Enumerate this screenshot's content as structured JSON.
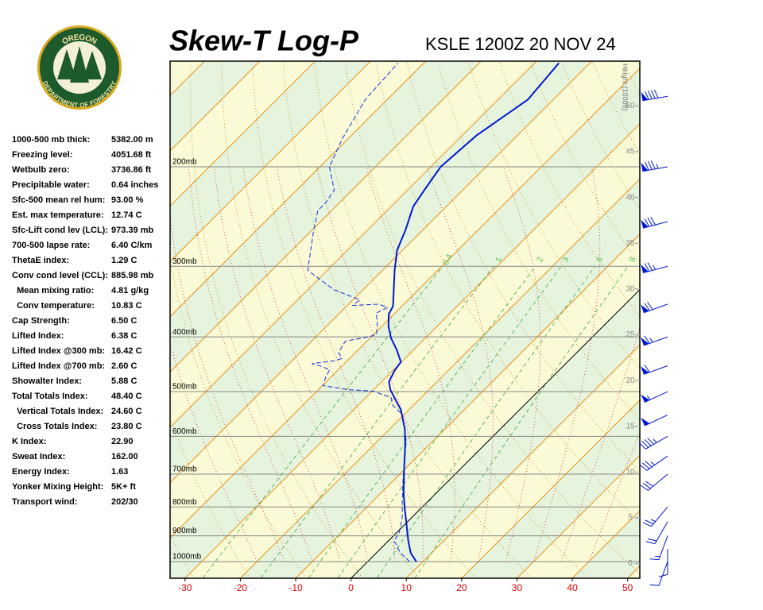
{
  "logo": {
    "top": "OREGON",
    "bottom": "DEPARTMENT OF FORESTRY"
  },
  "indices": {
    "rows": [
      [
        "1000-500 mb thick:",
        "5382.00 m"
      ],
      [
        "Freezing level:",
        "4051.68 ft"
      ],
      [
        "Wetbulb zero:",
        "3736.86 ft"
      ],
      [
        "Precipitable water:",
        "0.64 inches"
      ],
      [
        "Sfc-500 mean rel hum:",
        "93.00 %"
      ],
      [
        "Est. max temperature:",
        "12.74 C"
      ],
      [
        "Sfc-Lift cond lev (LCL):",
        "973.39 mb"
      ],
      [
        "700-500 lapse rate:",
        "6.40 C/km"
      ],
      [
        "ThetaE index:",
        "1.29 C"
      ],
      [
        "Conv cond level (CCL):",
        "885.98 mb"
      ],
      [
        "  Mean mixing ratio:",
        "4.81 g/kg"
      ],
      [
        "  Conv temperature:",
        "10.83 C"
      ],
      [
        "Cap Strength:",
        "6.50 C"
      ],
      [
        "Lifted Index:",
        "6.38 C"
      ],
      [
        "Lifted Index @300 mb:",
        "16.42 C"
      ],
      [
        "Lifted Index @700 mb:",
        "2.60 C"
      ],
      [
        "Showalter Index:",
        "5.88 C"
      ],
      [
        "Total Totals Index:",
        "48.40 C"
      ],
      [
        "  Vertical Totals Index:",
        "24.60 C"
      ],
      [
        "  Cross Totals Index:",
        "23.80 C"
      ],
      [
        "K Index:",
        "22.90"
      ],
      [
        "Sweat Index:",
        "162.00"
      ],
      [
        "Energy Index:",
        "1.63"
      ],
      [
        "Yonker Mixing Height:",
        "5K+ ft"
      ],
      [
        "Transport wind:",
        "202/30"
      ]
    ]
  },
  "chart_data": {
    "type": "skewt",
    "title": "Skew-T Log-P",
    "subtitle": "KSLE 1200Z 20 NOV 24",
    "y2label": "Height (1000ft)",
    "xlim": [
      -32.7,
      52.2
    ],
    "xticks": [
      -30,
      -20,
      -10,
      0,
      10,
      20,
      30,
      40,
      50
    ],
    "ylim": [
      1070,
      130
    ],
    "log_y": true,
    "yticks": [
      {
        "value": 200,
        "label": "200mb"
      },
      {
        "value": 300,
        "label": "300mb"
      },
      {
        "value": 400,
        "label": "400mb"
      },
      {
        "value": 500,
        "label": "500mb"
      },
      {
        "value": 600,
        "label": "600mb"
      },
      {
        "value": 700,
        "label": "700mb"
      },
      {
        "value": 800,
        "label": "800mb"
      },
      {
        "value": 900,
        "label": "900mb"
      },
      {
        "value": 1000,
        "label": "1000mb"
      }
    ],
    "y2lim": [
      -1.6,
      54.9
    ],
    "y2ticks": [
      0,
      5,
      10,
      15,
      20,
      25,
      30,
      35,
      40,
      45,
      50
    ],
    "mixing_ratio_lines": [
      0.4,
      1,
      2,
      3,
      5,
      8
    ],
    "series": [
      {
        "color": "#0018d0",
        "width": 2,
        "dashed": false,
        "pressure": [
          1000,
          965,
          919,
          847,
          807,
          756,
          688,
          623,
          583,
          538,
          521,
          496,
          480,
          458,
          443,
          422,
          402,
          383,
          365,
          353,
          305,
          281,
          259,
          235,
          219,
          200,
          176,
          152,
          131
        ],
        "values": [
          8.8,
          6.2,
          3.6,
          -0.4,
          -2.8,
          -5.9,
          -10.0,
          -14.2,
          -17.2,
          -21.5,
          -23.7,
          -27.0,
          -28.7,
          -29.7,
          -30.1,
          -33.0,
          -36.2,
          -38.8,
          -40.9,
          -41.6,
          -47.8,
          -51.0,
          -53.1,
          -56.0,
          -57.0,
          -58.2,
          -57.4,
          -54.6,
          -55.6
        ]
      },
      {
        "color": "#1030e0",
        "width": 1,
        "dashed": true,
        "pressure": [
          1000,
          965,
          934,
          919,
          889,
          834,
          781,
          708,
          664,
          612,
          583,
          546,
          529,
          512,
          499,
          496,
          488,
          472,
          457,
          449,
          446,
          441,
          437,
          426,
          407,
          400,
          396,
          378,
          363,
          355,
          350,
          352,
          344,
          330,
          305,
          259,
          239,
          232,
          220,
          200,
          178,
          152,
          131
        ],
        "values": [
          7.6,
          4.3,
          2.2,
          1.0,
          0.5,
          -1.8,
          -4.7,
          -8.9,
          -11.5,
          -14.8,
          -17.2,
          -20.8,
          -23.7,
          -25.5,
          -29.9,
          -34.5,
          -39.9,
          -40.9,
          -41.6,
          -44.5,
          -45.9,
          -42.4,
          -41.4,
          -43.1,
          -43.9,
          -40.5,
          -39.5,
          -41.4,
          -43.4,
          -42.4,
          -44.5,
          -49.0,
          -48.8,
          -55.3,
          -63.5,
          -69.7,
          -72.5,
          -72.5,
          -73.2,
          -78.3,
          -81.1,
          -84.0,
          -84.7
        ]
      }
    ],
    "winds": {
      "color": "#0018d0",
      "pressure": [
        1000,
        950,
        900,
        850,
        800,
        700,
        650,
        600,
        550,
        500,
        450,
        400,
        350,
        300,
        250,
        200,
        150
      ],
      "direction": [
        200,
        180,
        200,
        210,
        220,
        230,
        235,
        240,
        245,
        245,
        250,
        250,
        250,
        255,
        255,
        260,
        260
      ],
      "speed": [
        10,
        10,
        15,
        20,
        25,
        30,
        35,
        45,
        50,
        55,
        60,
        65,
        70,
        75,
        80,
        85,
        90
      ]
    }
  }
}
